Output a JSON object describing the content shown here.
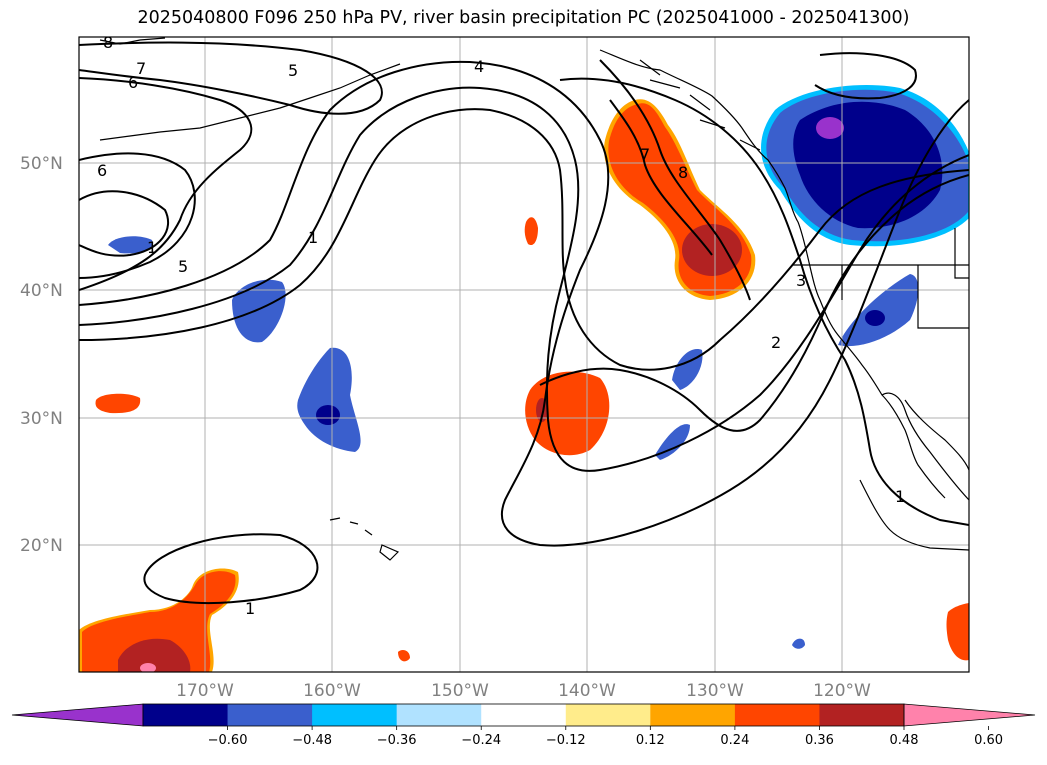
{
  "title": "2025040800 F096 250 hPa PV, river basin precipitation PC (2025041000 - 2025041300)",
  "map": {
    "lat_labels": [
      "50°N",
      "40°N",
      "30°N",
      "20°N"
    ],
    "lon_labels": [
      "170°W",
      "160°W",
      "150°W",
      "140°W",
      "130°W",
      "120°W"
    ],
    "contour_labels": [
      "8",
      "7",
      "6",
      "5",
      "4",
      "6",
      "1",
      "5",
      "1",
      "7",
      "8",
      "3",
      "2",
      "1",
      "1"
    ]
  },
  "colorbar": {
    "colors": [
      "#9932cc",
      "#00008b",
      "#3a5fcd",
      "#00bfff",
      "#b0e2ff",
      "#ffffff",
      "#ffec8b",
      "#ffa500",
      "#ff4500",
      "#b22222",
      "#ff82ab"
    ],
    "labels": [
      "−0.60",
      "−0.48",
      "−0.36",
      "−0.24",
      "−0.12",
      "0.12",
      "0.24",
      "0.36",
      "0.48",
      "0.60"
    ]
  }
}
